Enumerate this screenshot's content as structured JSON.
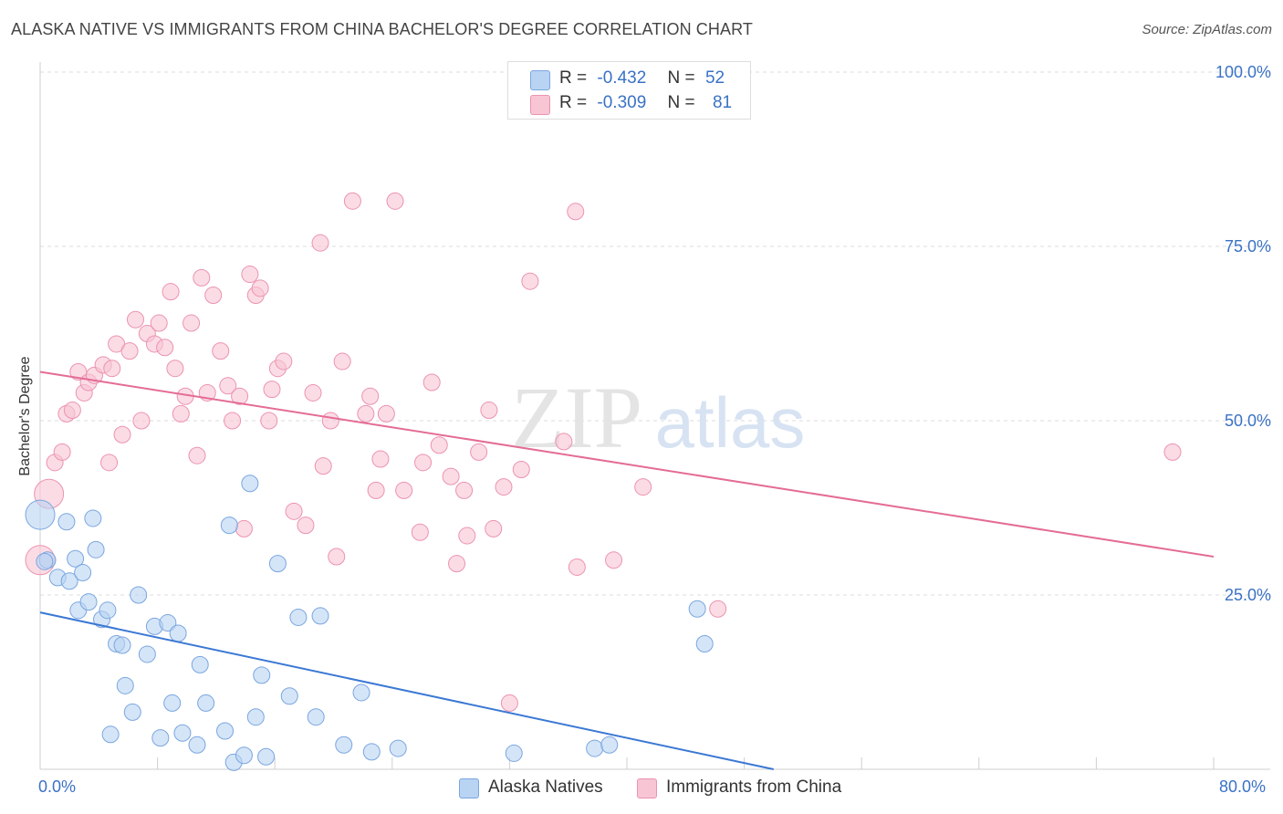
{
  "title": "ALASKA NATIVE VS IMMIGRANTS FROM CHINA BACHELOR'S DEGREE CORRELATION CHART",
  "source": "Source: ZipAtlas.com",
  "watermark": {
    "zip": "ZIP",
    "atlas": "atlas"
  },
  "colors": {
    "blue_fill": "#b9d3f3",
    "blue_stroke": "#7aa6df",
    "blue_line": "#3a78d4",
    "pink_fill": "#f8c5d4",
    "pink_stroke": "#ec93b0",
    "pink_line": "#e46c95",
    "tick_text": "#3a72c6"
  },
  "legend": {
    "r_label": "R =",
    "n_label": "N =",
    "rows": [
      {
        "r": "-0.432",
        "n": "52",
        "color": "#b9d3f3",
        "border": "#7aa6df"
      },
      {
        "r": "-0.309",
        "n": "81",
        "color": "#f8c5d4",
        "border": "#ec93b0"
      }
    ]
  },
  "bottom_legend": [
    {
      "label": "Alaska Natives",
      "color": "#b9d3f3",
      "border": "#7aa6df"
    },
    {
      "label": "Immigrants from China",
      "color": "#f8c5d4",
      "border": "#ec93b0"
    }
  ],
  "chart_data": {
    "type": "scatter",
    "title": "ALASKA NATIVE VS IMMIGRANTS FROM CHINA BACHELOR'S DEGREE CORRELATION CHART",
    "xlabel": "",
    "ylabel": "Bachelor's Degree",
    "xlim": [
      0,
      80
    ],
    "ylim": [
      0,
      100
    ],
    "x_tick_labels": [
      "0.0%",
      "80.0%"
    ],
    "y_tick_values": [
      25,
      50,
      75,
      100
    ],
    "y_tick_labels": [
      "25.0%",
      "50.0%",
      "75.0%",
      "100.0%"
    ],
    "grid": true,
    "legend_position": "top-center",
    "series": [
      {
        "name": "Alaska Natives",
        "color": "#b9d3f3",
        "trend": {
          "x": [
            0,
            50
          ],
          "y": [
            22.5,
            0
          ]
        },
        "points": [
          {
            "x": 0.0,
            "y": 36.5,
            "big": true
          },
          {
            "x": 0.5,
            "y": 30.0
          },
          {
            "x": 1.2,
            "y": 27.5
          },
          {
            "x": 1.8,
            "y": 35.5
          },
          {
            "x": 2.0,
            "y": 27.0
          },
          {
            "x": 2.4,
            "y": 30.2
          },
          {
            "x": 2.6,
            "y": 22.8
          },
          {
            "x": 2.9,
            "y": 28.2
          },
          {
            "x": 3.3,
            "y": 24.0
          },
          {
            "x": 3.6,
            "y": 36.0
          },
          {
            "x": 3.8,
            "y": 31.5
          },
          {
            "x": 4.2,
            "y": 21.5
          },
          {
            "x": 4.6,
            "y": 22.8
          },
          {
            "x": 5.2,
            "y": 18.0
          },
          {
            "x": 5.6,
            "y": 17.8
          },
          {
            "x": 5.8,
            "y": 12.0
          },
          {
            "x": 4.8,
            "y": 5.0
          },
          {
            "x": 6.3,
            "y": 8.2
          },
          {
            "x": 6.7,
            "y": 25.0
          },
          {
            "x": 7.3,
            "y": 16.5
          },
          {
            "x": 7.8,
            "y": 20.5
          },
          {
            "x": 8.2,
            "y": 4.5
          },
          {
            "x": 8.7,
            "y": 21.0
          },
          {
            "x": 9.0,
            "y": 9.5
          },
          {
            "x": 9.4,
            "y": 19.5
          },
          {
            "x": 9.7,
            "y": 5.2
          },
          {
            "x": 10.7,
            "y": 3.5
          },
          {
            "x": 10.9,
            "y": 15.0
          },
          {
            "x": 11.3,
            "y": 9.5
          },
          {
            "x": 12.6,
            "y": 5.5
          },
          {
            "x": 12.9,
            "y": 35.0
          },
          {
            "x": 13.2,
            "y": 1.0
          },
          {
            "x": 13.9,
            "y": 2.0
          },
          {
            "x": 14.3,
            "y": 41.0
          },
          {
            "x": 14.7,
            "y": 7.5
          },
          {
            "x": 15.1,
            "y": 13.5
          },
          {
            "x": 15.4,
            "y": 1.8
          },
          {
            "x": 16.2,
            "y": 29.5
          },
          {
            "x": 17.0,
            "y": 10.5
          },
          {
            "x": 17.6,
            "y": 21.8
          },
          {
            "x": 18.8,
            "y": 7.5
          },
          {
            "x": 19.1,
            "y": 22.0
          },
          {
            "x": 20.7,
            "y": 3.5
          },
          {
            "x": 21.9,
            "y": 11.0
          },
          {
            "x": 22.6,
            "y": 2.5
          },
          {
            "x": 24.4,
            "y": 3.0
          },
          {
            "x": 32.3,
            "y": 2.3
          },
          {
            "x": 37.8,
            "y": 3.0
          },
          {
            "x": 38.8,
            "y": 3.5
          },
          {
            "x": 44.8,
            "y": 23.0
          },
          {
            "x": 45.3,
            "y": 18.0
          },
          {
            "x": 0.3,
            "y": 29.8
          }
        ]
      },
      {
        "name": "Immigrants from China",
        "color": "#f8c5d4",
        "trend": {
          "x": [
            0,
            80
          ],
          "y": [
            57,
            30.5
          ]
        },
        "points": [
          {
            "x": 0.0,
            "y": 30.0,
            "big": true
          },
          {
            "x": 0.6,
            "y": 39.5,
            "big": true
          },
          {
            "x": 1.0,
            "y": 44.0
          },
          {
            "x": 1.5,
            "y": 45.5
          },
          {
            "x": 1.8,
            "y": 51.0
          },
          {
            "x": 2.2,
            "y": 51.5
          },
          {
            "x": 2.6,
            "y": 57.0
          },
          {
            "x": 3.0,
            "y": 54.0
          },
          {
            "x": 3.3,
            "y": 55.5
          },
          {
            "x": 3.7,
            "y": 56.5
          },
          {
            "x": 4.3,
            "y": 58.0
          },
          {
            "x": 4.7,
            "y": 44.0
          },
          {
            "x": 4.9,
            "y": 57.5
          },
          {
            "x": 5.2,
            "y": 61.0
          },
          {
            "x": 5.6,
            "y": 48.0
          },
          {
            "x": 6.1,
            "y": 60.0
          },
          {
            "x": 6.5,
            "y": 64.5
          },
          {
            "x": 6.9,
            "y": 50.0
          },
          {
            "x": 7.3,
            "y": 62.5
          },
          {
            "x": 7.8,
            "y": 61.0
          },
          {
            "x": 8.1,
            "y": 64.0
          },
          {
            "x": 8.5,
            "y": 60.5
          },
          {
            "x": 8.9,
            "y": 68.5
          },
          {
            "x": 9.2,
            "y": 57.5
          },
          {
            "x": 9.6,
            "y": 51.0
          },
          {
            "x": 9.9,
            "y": 53.5
          },
          {
            "x": 10.3,
            "y": 64.0
          },
          {
            "x": 10.7,
            "y": 45.0
          },
          {
            "x": 11.0,
            "y": 70.5
          },
          {
            "x": 11.4,
            "y": 54.0
          },
          {
            "x": 11.8,
            "y": 68.0
          },
          {
            "x": 12.3,
            "y": 60.0
          },
          {
            "x": 12.8,
            "y": 55.0
          },
          {
            "x": 13.1,
            "y": 50.0
          },
          {
            "x": 13.6,
            "y": 53.5
          },
          {
            "x": 13.9,
            "y": 34.5
          },
          {
            "x": 14.3,
            "y": 71.0
          },
          {
            "x": 14.7,
            "y": 68.0
          },
          {
            "x": 15.0,
            "y": 69.0
          },
          {
            "x": 15.6,
            "y": 50.0
          },
          {
            "x": 15.8,
            "y": 54.5
          },
          {
            "x": 16.2,
            "y": 57.5
          },
          {
            "x": 16.6,
            "y": 58.5
          },
          {
            "x": 17.3,
            "y": 37.0
          },
          {
            "x": 18.1,
            "y": 35.0
          },
          {
            "x": 18.6,
            "y": 54.0
          },
          {
            "x": 19.1,
            "y": 75.5
          },
          {
            "x": 19.3,
            "y": 43.5
          },
          {
            "x": 19.8,
            "y": 50.0
          },
          {
            "x": 20.2,
            "y": 30.5
          },
          {
            "x": 20.6,
            "y": 58.5
          },
          {
            "x": 21.3,
            "y": 81.5
          },
          {
            "x": 22.2,
            "y": 51.0
          },
          {
            "x": 22.5,
            "y": 53.5
          },
          {
            "x": 22.9,
            "y": 40.0
          },
          {
            "x": 23.2,
            "y": 44.5
          },
          {
            "x": 23.6,
            "y": 51.0
          },
          {
            "x": 24.2,
            "y": 81.5
          },
          {
            "x": 24.8,
            "y": 40.0
          },
          {
            "x": 25.9,
            "y": 34.0
          },
          {
            "x": 26.1,
            "y": 44.0
          },
          {
            "x": 26.7,
            "y": 55.5
          },
          {
            "x": 27.2,
            "y": 46.5
          },
          {
            "x": 28.0,
            "y": 42.0
          },
          {
            "x": 28.4,
            "y": 29.5
          },
          {
            "x": 28.9,
            "y": 40.0
          },
          {
            "x": 29.1,
            "y": 33.5
          },
          {
            "x": 29.9,
            "y": 45.5
          },
          {
            "x": 30.6,
            "y": 51.5
          },
          {
            "x": 30.9,
            "y": 34.5
          },
          {
            "x": 31.6,
            "y": 40.5
          },
          {
            "x": 32.0,
            "y": 9.5
          },
          {
            "x": 32.8,
            "y": 43.0
          },
          {
            "x": 33.4,
            "y": 70.0
          },
          {
            "x": 35.7,
            "y": 47.0
          },
          {
            "x": 36.5,
            "y": 80.0
          },
          {
            "x": 36.6,
            "y": 29.0
          },
          {
            "x": 39.1,
            "y": 30.0
          },
          {
            "x": 41.1,
            "y": 40.5
          },
          {
            "x": 46.2,
            "y": 23.0
          },
          {
            "x": 77.2,
            "y": 45.5
          }
        ]
      }
    ]
  }
}
